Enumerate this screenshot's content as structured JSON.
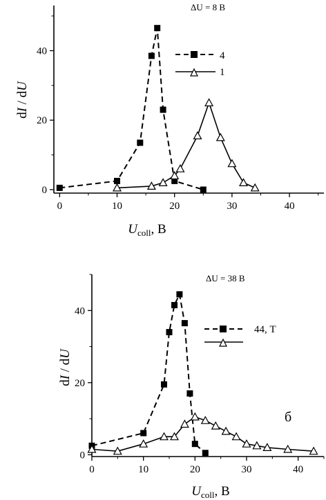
{
  "chart_data": [
    {
      "type": "line",
      "annotation": "ΔU = 8 В",
      "xlabel": {
        "main": "U",
        "sub": "coll",
        "unit": ",  В"
      },
      "ylabel": {
        "d1": "d",
        "v1": "I",
        "sep": " / d",
        "v2": "U"
      },
      "xlim": [
        -1,
        46
      ],
      "ylim": [
        -1,
        53
      ],
      "xticks": [
        "0",
        "10",
        "20",
        "30",
        "40"
      ],
      "yticks": [
        "0",
        "20",
        "40"
      ],
      "legend_text": [
        "4",
        "1"
      ],
      "series": [
        {
          "marker": "square",
          "line": "dashed",
          "x": [
            0,
            10,
            14,
            16,
            17,
            18,
            20,
            25
          ],
          "y": [
            0.5,
            2.5,
            13.5,
            38.5,
            46.5,
            23,
            2.5,
            0
          ]
        },
        {
          "marker": "triangle",
          "line": "solid",
          "x": [
            10,
            16,
            18,
            20,
            21,
            24,
            26,
            28,
            30,
            32,
            34
          ],
          "y": [
            0.5,
            1,
            2,
            4,
            6,
            15.5,
            25,
            15,
            7.5,
            2,
            0.5
          ]
        }
      ]
    },
    {
      "type": "line",
      "annotation": "ΔU = 38 В",
      "corner_label": "б",
      "xlabel": {
        "main": "U",
        "sub": "coll",
        "unit": ",  В"
      },
      "ylabel": {
        "d1": "d",
        "v1": "I",
        "sep": " / d",
        "v2": "U"
      },
      "xlim": [
        0,
        45
      ],
      "ylim": [
        -0.5,
        50
      ],
      "xticks": [
        "0",
        "10",
        "20",
        "30",
        "40"
      ],
      "yticks": [
        "0",
        "20",
        "40"
      ],
      "legend_text": [
        "44, Т",
        ""
      ],
      "series": [
        {
          "marker": "square",
          "line": "dashed",
          "x": [
            0,
            10,
            14,
            15,
            16,
            17,
            18,
            19,
            20,
            22
          ],
          "y": [
            2.5,
            6,
            19.5,
            34,
            41.5,
            44.5,
            36.5,
            17,
            3,
            0.5
          ]
        },
        {
          "marker": "triangle",
          "line": "solid",
          "x": [
            0,
            5,
            10,
            14,
            16,
            18,
            20,
            22,
            24,
            26,
            28,
            30,
            32,
            34,
            38,
            43
          ],
          "y": [
            1.5,
            1,
            3,
            5,
            5,
            8.5,
            10.5,
            9.5,
            8,
            6.5,
            5,
            3,
            2.5,
            2,
            1.5,
            1
          ]
        }
      ]
    }
  ]
}
